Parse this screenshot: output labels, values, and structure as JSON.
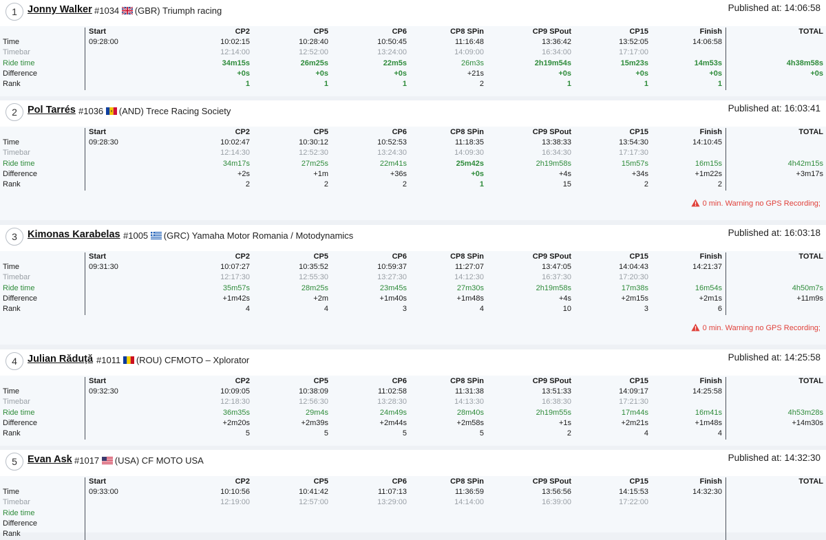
{
  "labels": {
    "time": "Time",
    "timebar": "Timebar",
    "ride_time": "Ride time",
    "difference": "Difference",
    "rank": "Rank"
  },
  "columns": [
    "Start",
    "CP2",
    "CP5",
    "CP6",
    "CP8 SPin",
    "CP9 SPout",
    "CP15",
    "Finish",
    "TOTAL"
  ],
  "published_prefix": "Published at:",
  "riders": [
    {
      "position": "1",
      "name": "Jonny Walker",
      "number": "#1034",
      "flag_icon": "uk-flag-icon",
      "team": "(GBR) Triumph racing",
      "published": "Published at: 14:06:58",
      "start": "09:28:00",
      "time": [
        "10:02:15",
        "10:28:40",
        "10:50:45",
        "11:16:48",
        "13:36:42",
        "13:52:05",
        "14:06:58"
      ],
      "timebar": [
        "12:14:00",
        "12:52:00",
        "13:24:00",
        "14:09:00",
        "16:34:00",
        "17:17:00"
      ],
      "ride_time": [
        "34m15s",
        "26m25s",
        "22m5s",
        "26m3s",
        "2h19m54s",
        "15m23s",
        "14m53s",
        "4h38m58s"
      ],
      "difference": [
        "+0s",
        "+0s",
        "+0s",
        "+21s",
        "+0s",
        "+0s",
        "+0s",
        "+0s"
      ],
      "rank": [
        "1",
        "1",
        "1",
        "2",
        "1",
        "1",
        "1"
      ],
      "best": [
        true,
        true,
        true,
        false,
        true,
        true,
        true,
        true
      ],
      "warning": ""
    },
    {
      "position": "2",
      "name": "Pol Tarrés",
      "number": "#1036",
      "flag_icon": "andorra-flag-icon",
      "team": "(AND) Trece Racing Society",
      "published": "Published at: 16:03:41",
      "start": "09:28:30",
      "time": [
        "10:02:47",
        "10:30:12",
        "10:52:53",
        "11:18:35",
        "13:38:33",
        "13:54:30",
        "14:10:45"
      ],
      "timebar": [
        "12:14:30",
        "12:52:30",
        "13:24:30",
        "14:09:30",
        "16:34:30",
        "17:17:30"
      ],
      "ride_time": [
        "34m17s",
        "27m25s",
        "22m41s",
        "25m42s",
        "2h19m58s",
        "15m57s",
        "16m15s",
        "4h42m15s"
      ],
      "difference": [
        "+2s",
        "+1m",
        "+36s",
        "+0s",
        "+4s",
        "+34s",
        "+1m22s",
        "+3m17s"
      ],
      "rank": [
        "2",
        "2",
        "2",
        "1",
        "15",
        "2",
        "2"
      ],
      "best": [
        false,
        false,
        false,
        true,
        false,
        false,
        false,
        false
      ],
      "warning": "0 min. Warning no GPS Recording;"
    },
    {
      "position": "3",
      "name": "Kimonas Karabelas",
      "number": "#1005",
      "flag_icon": "greece-flag-icon",
      "team": "(GRC) Yamaha Motor Romania / Motodynamics",
      "published": "Published at: 16:03:18",
      "start": "09:31:30",
      "time": [
        "10:07:27",
        "10:35:52",
        "10:59:37",
        "11:27:07",
        "13:47:05",
        "14:04:43",
        "14:21:37"
      ],
      "timebar": [
        "12:17:30",
        "12:55:30",
        "13:27:30",
        "14:12:30",
        "16:37:30",
        "17:20:30"
      ],
      "ride_time": [
        "35m57s",
        "28m25s",
        "23m45s",
        "27m30s",
        "2h19m58s",
        "17m38s",
        "16m54s",
        "4h50m7s"
      ],
      "difference": [
        "+1m42s",
        "+2m",
        "+1m40s",
        "+1m48s",
        "+4s",
        "+2m15s",
        "+2m1s",
        "+11m9s"
      ],
      "rank": [
        "4",
        "4",
        "3",
        "4",
        "10",
        "3",
        "6"
      ],
      "best": [
        false,
        false,
        false,
        false,
        false,
        false,
        false,
        false
      ],
      "warning": "0 min. Warning no GPS Recording;"
    },
    {
      "position": "4",
      "name": "Julian Răduță",
      "number": "#1011",
      "flag_icon": "romania-flag-icon",
      "team": "(ROU) CFMOTO – Xplorator",
      "published": "Published at: 14:25:58",
      "start": "09:32:30",
      "time": [
        "10:09:05",
        "10:38:09",
        "11:02:58",
        "11:31:38",
        "13:51:33",
        "14:09:17",
        "14:25:58"
      ],
      "timebar": [
        "12:18:30",
        "12:56:30",
        "13:28:30",
        "14:13:30",
        "16:38:30",
        "17:21:30"
      ],
      "ride_time": [
        "36m35s",
        "29m4s",
        "24m49s",
        "28m40s",
        "2h19m55s",
        "17m44s",
        "16m41s",
        "4h53m28s"
      ],
      "difference": [
        "+2m20s",
        "+2m39s",
        "+2m44s",
        "+2m58s",
        "+1s",
        "+2m21s",
        "+1m48s",
        "+14m30s"
      ],
      "rank": [
        "5",
        "5",
        "5",
        "5",
        "2",
        "4",
        "4"
      ],
      "best": [
        false,
        false,
        false,
        false,
        false,
        false,
        false,
        false
      ],
      "warning": ""
    },
    {
      "position": "5",
      "name": "Evan Ask",
      "number": "#1017",
      "flag_icon": "usa-flag-icon",
      "team": "(USA) CF MOTO USA",
      "published": "Published at: 14:32:30",
      "start": "09:33:00",
      "time": [
        "10:10:56",
        "10:41:42",
        "11:07:13",
        "11:36:59",
        "13:56:56",
        "14:15:53",
        "14:32:30"
      ],
      "timebar": [
        "12:19:00",
        "12:57:00",
        "13:29:00",
        "14:14:00",
        "16:39:00",
        "17:22:00"
      ],
      "ride_time": [],
      "difference": [],
      "rank": [],
      "best": [
        false,
        false,
        false,
        false,
        false,
        false,
        false,
        false
      ],
      "warning": ""
    }
  ]
}
